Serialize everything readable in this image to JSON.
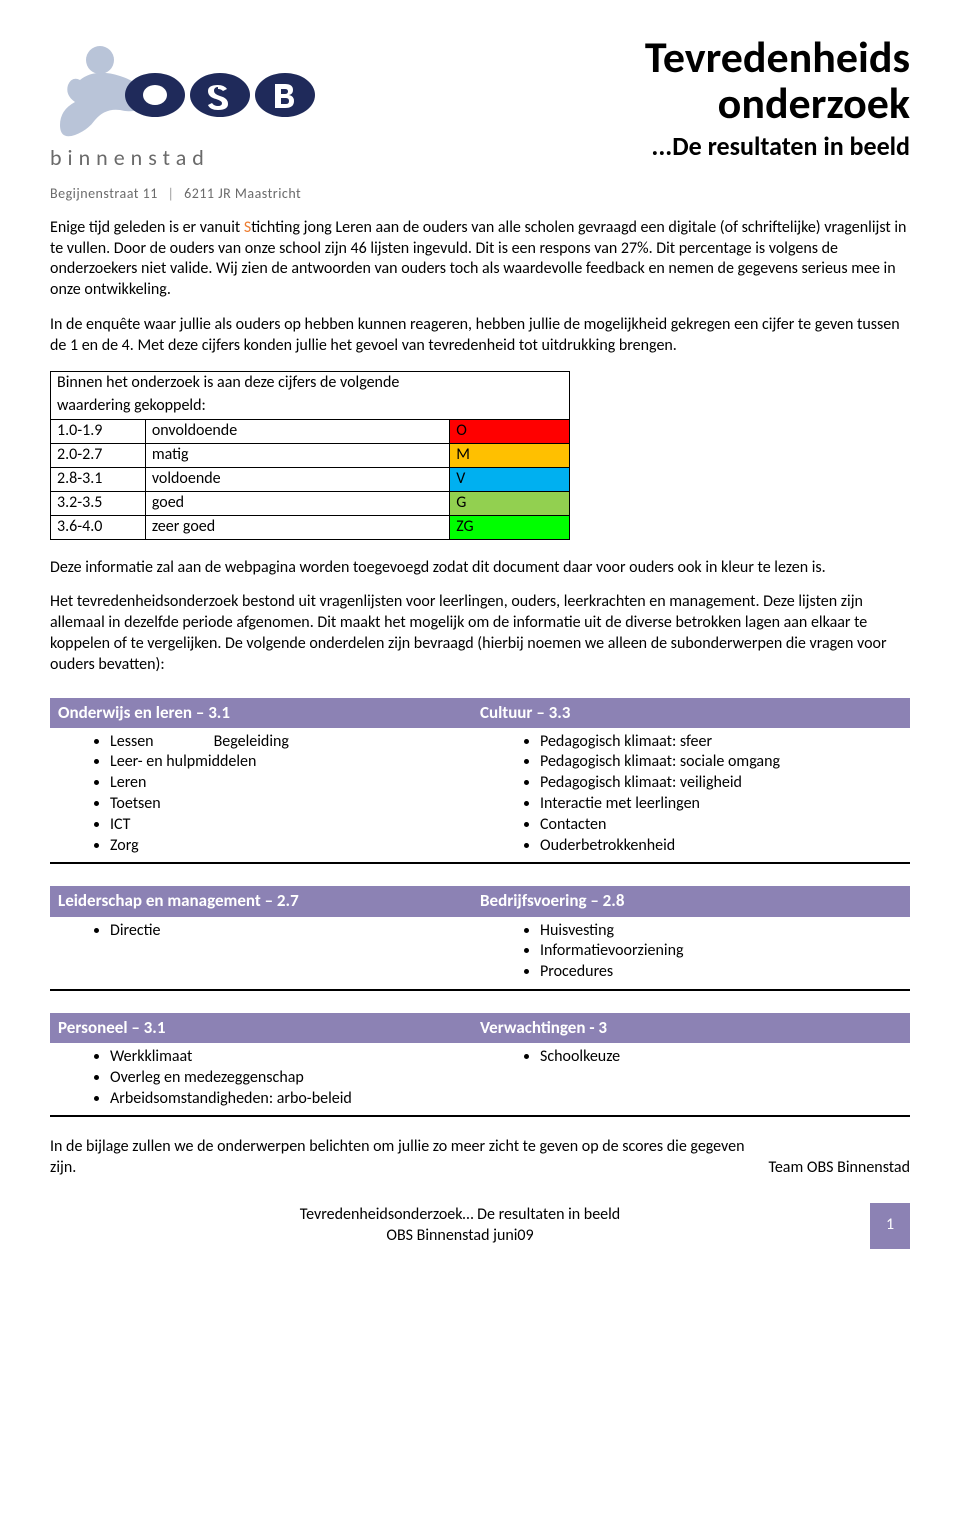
{
  "logo": {
    "brand_text": "binnenstad",
    "addr_street": "Begijnenstraat 11",
    "addr_postal": "6211 JR  Maastricht",
    "color_navy": "#1f2a5a",
    "color_lightblue": "#b9c4d8",
    "color_grey": "#6a6a6a"
  },
  "title": {
    "line1": "Tevredenheids",
    "line2": "onderzoek",
    "subtitle": "...De resultaten in beeld"
  },
  "intro": {
    "p1_pre": "Enige tijd geleden is er vanuit ",
    "p1_highlight": "S",
    "p1_post": "tichting jong Leren aan de ouders van alle scholen gevraagd een digitale (of schriftelijke) vragenlijst in te vullen. Door de ouders van onze school zijn 46 lijsten ingevuld. Dit is een respons van 27%. Dit percentage is volgens de onderzoekers niet valide. Wij zien de antwoorden van ouders toch als waardevolle feedback en nemen de gegevens serieus mee in onze ontwikkeling.",
    "p2": "In de enquête waar jullie als ouders op hebben kunnen reageren, hebben jullie de mogelijkheid gekregen een cijfer te geven tussen de 1 en de 4. Met deze cijfers konden jullie het gevoel van tevredenheid tot uitdrukking brengen."
  },
  "rating_table": {
    "intro_line1": "Binnen het onderzoek is aan deze cijfers de volgende",
    "intro_line2": "waardering gekoppeld:",
    "rows": [
      {
        "range": "1.0-1.9",
        "label": "onvoldoende",
        "code": "O",
        "bg": "#ff0000"
      },
      {
        "range": "2.0-2.7",
        "label": "matig",
        "code": "M",
        "bg": "#ffc000"
      },
      {
        "range": "2.8-3.1",
        "label": "voldoende",
        "code": "V",
        "bg": "#00b0f0"
      },
      {
        "range": "3.2-3.5",
        "label": "goed",
        "code": "G",
        "bg": "#92d050"
      },
      {
        "range": "3.6-4.0",
        "label": "zeer goed",
        "code": "ZG",
        "bg": "#00ff00"
      }
    ]
  },
  "mid": {
    "p3": "Deze informatie zal aan de webpagina worden toegevoegd zodat dit document daar voor ouders ook in kleur te lezen is.",
    "p4": "Het tevredenheidsonderzoek bestond uit vragenlijsten voor leerlingen, ouders, leerkrachten en management. Deze lijsten zijn allemaal in dezelfde periode afgenomen. Dit maakt het mogelijk om de informatie uit de diverse betrokken lagen aan elkaar te koppelen of te vergelijken. De volgende onderdelen zijn bevraagd (hierbij noemen we alleen de subonderwerpen die vragen voor ouders bevatten):"
  },
  "sections": [
    {
      "left_title": "Onderwijs en leren – 3.1",
      "right_title": "Cultuur – 3.3",
      "left_items": [
        "Lessen            Begeleiding",
        "Leer- en hulpmiddelen",
        "Leren",
        "Toetsen",
        "ICT",
        "Zorg"
      ],
      "right_items": [
        "Pedagogisch klimaat: sfeer",
        "Pedagogisch klimaat: sociale omgang",
        "Pedagogisch klimaat: veiligheid",
        "Interactie met leerlingen",
        "Contacten",
        "Ouderbetrokkenheid"
      ]
    },
    {
      "left_title": "Leiderschap en management – 2.7",
      "right_title": "Bedrijfsvoering – 2.8",
      "left_items": [
        "Directie"
      ],
      "right_items": [
        "Huisvesting",
        "Informatievoorziening",
        "Procedures"
      ]
    },
    {
      "left_title": "Personeel – 3.1",
      "right_title": "Verwachtingen - 3",
      "left_items": [
        "Werkklimaat",
        "Overleg en medezeggenschap",
        "Arbeidsomstandigheden: arbo-beleid"
      ],
      "right_items": [
        "Schoolkeuze"
      ]
    }
  ],
  "closing": {
    "line1": "In de bijlage zullen we de onderwerpen  belichten om jullie zo meer zicht te geven op de scores die gegeven",
    "line2": "zijn.",
    "team": "Team OBS Binnenstad"
  },
  "footer": {
    "title": "Tevredenheidsonderzoek… De resultaten in beeld",
    "org": "OBS Binnenstad juni09",
    "pagenum": "1",
    "bar_color": "#8c82b4"
  },
  "colors": {
    "section_header_bg": "#8c82b4",
    "section_header_fg": "#ffffff"
  }
}
